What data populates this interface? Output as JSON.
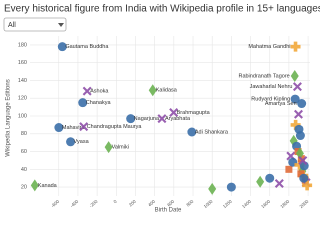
{
  "controls": {
    "filter": "All"
  },
  "chart_data": {
    "type": "scatter",
    "title": "Every historical figure from India with Wikipedia profile in 15+ languages",
    "x_label": "Birth Date",
    "y_label": "Wikipedia Language Editions",
    "xlim": [
      -900,
      2020
    ],
    "ylim": [
      10,
      190
    ],
    "xticks": [
      -600,
      -400,
      -200,
      0,
      200,
      400,
      600,
      800,
      1000,
      1200,
      1400,
      1600,
      1800,
      2000
    ],
    "yticks": [
      20,
      40,
      60,
      80,
      100,
      120,
      140,
      160,
      180
    ],
    "grid": true,
    "x": [
      -563,
      1869,
      1861,
      1889,
      -304,
      380,
      -350,
      598,
      150,
      476,
      -599,
      -340,
      788,
      -477,
      -80,
      -850,
      1865,
      1933,
      1800,
      1820,
      1840,
      1850,
      1870,
      1880,
      1895,
      1900,
      1910,
      1920,
      1930,
      1940,
      1950,
      1960,
      1970,
      1980,
      1990,
      1905,
      1915,
      1925,
      1945,
      1955,
      1500,
      1600,
      1700,
      1200,
      1000
    ],
    "values": [
      178,
      178,
      145,
      133,
      128,
      129,
      115,
      104,
      97,
      97,
      87,
      88,
      82,
      71,
      65,
      22,
      119,
      114,
      40,
      55,
      48,
      72,
      90,
      66,
      60,
      102,
      45,
      78,
      52,
      38,
      33,
      44,
      28,
      25,
      22,
      85,
      58,
      35,
      50,
      30,
      26,
      30,
      24,
      20,
      18
    ],
    "labels": [
      "Gautama Buddha",
      "Mahatma Gandhi",
      "Rabindranath Tagore",
      "Jawaharlal Nehru",
      "Ashoka",
      "Kalidasa",
      "Chanakya",
      "Brahmagupta",
      "Nagarjuna",
      "Aryabhata",
      "Mahavira",
      "Chandragupta Maurya",
      "Adi Shankara",
      "Vyasa",
      "Valmiki",
      "Kanada",
      "Rudyard Kipling",
      "Amartya Sen",
      null,
      null,
      null,
      null,
      null,
      null,
      null,
      null,
      null,
      null,
      null,
      null,
      null,
      null,
      null,
      null,
      null,
      null,
      null,
      null,
      null,
      null,
      null,
      null,
      null,
      null,
      null
    ],
    "colors": [
      "#3b6fa8",
      "#f2a93b",
      "#6cb352",
      "#8e4fa8",
      "#8e4fa8",
      "#6cb352",
      "#3b6fa8",
      "#8e4fa8",
      "#3b6fa8",
      "#8e4fa8",
      "#3b6fa8",
      "#8e4fa8",
      "#3b6fa8",
      "#3b6fa8",
      "#6cb352",
      "#6cb352",
      "#3b6fa8",
      "#3b6fa8",
      "#e06c3a",
      "#8e4fa8",
      "#3b6fa8",
      "#6cb352",
      "#f2a93b",
      "#3b6fa8",
      "#e06c3a",
      "#8e4fa8",
      "#f2a93b",
      "#3b6fa8",
      "#e06c3a",
      "#6cb352",
      "#f2a93b",
      "#3b6fa8",
      "#e06c3a",
      "#8e4fa8",
      "#f2a93b",
      "#3b6fa8",
      "#6cb352",
      "#e06c3a",
      "#8e4fa8",
      "#3b6fa8",
      "#6cb352",
      "#3b6fa8",
      "#8e4fa8",
      "#3b6fa8",
      "#6cb352"
    ],
    "shapes": [
      "circle",
      "plus",
      "diamond",
      "x",
      "x",
      "diamond",
      "circle",
      "x",
      "circle",
      "x",
      "circle",
      "x",
      "circle",
      "circle",
      "diamond",
      "diamond",
      "circle",
      "circle",
      "square",
      "x",
      "circle",
      "diamond",
      "plus",
      "circle",
      "square",
      "x",
      "plus",
      "circle",
      "square",
      "diamond",
      "plus",
      "circle",
      "square",
      "x",
      "plus",
      "circle",
      "diamond",
      "square",
      "x",
      "circle",
      "diamond",
      "circle",
      "x",
      "circle",
      "diamond"
    ]
  }
}
